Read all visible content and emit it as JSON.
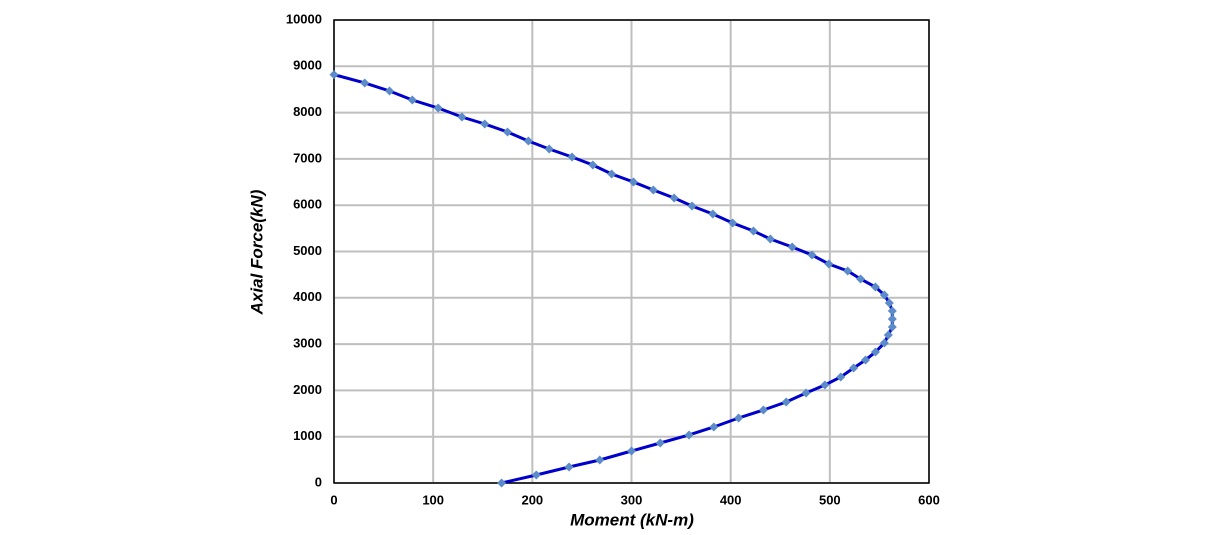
{
  "chart_data": {
    "type": "line",
    "x_label": "Moment (kN-m)",
    "y_label": "Axial Force(kN)",
    "xlim": [
      0,
      600
    ],
    "xticks": [
      0,
      100,
      200,
      300,
      400,
      500,
      600
    ],
    "ylim": [
      0,
      10000
    ],
    "yticks": [
      0,
      1000,
      2000,
      3000,
      4000,
      5000,
      6000,
      7000,
      8000,
      9000,
      10000
    ],
    "grid": true,
    "series": [
      {
        "color": "#0000cc",
        "marker_color": "#5b8bc8",
        "x": [
          0,
          31,
          56,
          79,
          105,
          129,
          152,
          175,
          196,
          217,
          240,
          261,
          280,
          302,
          322,
          343,
          361,
          382,
          402,
          423,
          440,
          462,
          482,
          499,
          518,
          531,
          546,
          555,
          560,
          563,
          563,
          563,
          559,
          555,
          546,
          536,
          524,
          511,
          495,
          476,
          456,
          433,
          408,
          383,
          358,
          329,
          300,
          268,
          237,
          204,
          169
        ],
        "values": [
          8820,
          8640,
          8467,
          8272,
          8099,
          7905,
          7754,
          7581,
          7387,
          7214,
          7041,
          6868,
          6674,
          6501,
          6328,
          6156,
          5983,
          5810,
          5616,
          5443,
          5270,
          5097,
          4924,
          4730,
          4579,
          4406,
          4233,
          4060,
          3888,
          3715,
          3542,
          3369,
          3197,
          3024,
          2829,
          2657,
          2484,
          2289,
          2117,
          1944,
          1749,
          1577,
          1404,
          1210,
          1037,
          864,
          691,
          497,
          346,
          173,
          0
        ]
      }
    ]
  }
}
